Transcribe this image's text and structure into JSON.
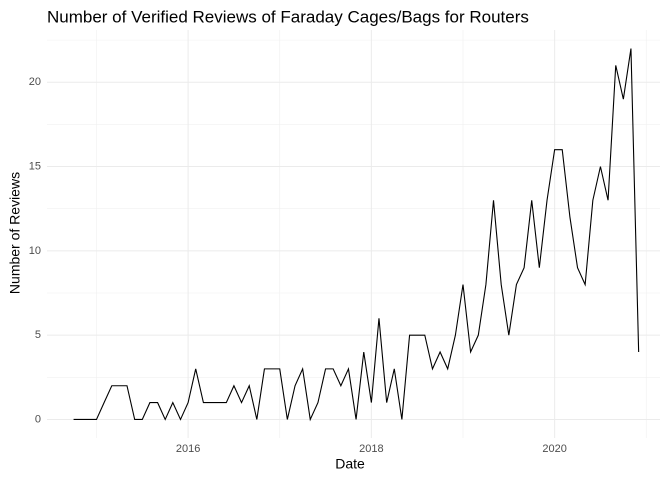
{
  "chart_data": {
    "type": "line",
    "title": "Number of Verified Reviews of Faraday Cages/Bags for Routers",
    "x_label": "Date",
    "y_label": "Number of Reviews",
    "x": [
      2014.75,
      2014.833,
      2014.917,
      2015,
      2015.083,
      2015.167,
      2015.25,
      2015.333,
      2015.417,
      2015.5,
      2015.583,
      2015.667,
      2015.75,
      2015.833,
      2015.917,
      2016,
      2016.083,
      2016.167,
      2016.25,
      2016.333,
      2016.417,
      2016.5,
      2016.583,
      2016.667,
      2016.75,
      2016.833,
      2016.917,
      2017,
      2017.083,
      2017.167,
      2017.25,
      2017.333,
      2017.417,
      2017.5,
      2017.583,
      2017.667,
      2017.75,
      2017.833,
      2017.917,
      2018,
      2018.083,
      2018.167,
      2018.25,
      2018.333,
      2018.417,
      2018.5,
      2018.583,
      2018.667,
      2018.75,
      2018.833,
      2018.917,
      2019,
      2019.083,
      2019.167,
      2019.25,
      2019.333,
      2019.417,
      2019.5,
      2019.583,
      2019.667,
      2019.75,
      2019.833,
      2019.917,
      2020,
      2020.083,
      2020.167,
      2020.25,
      2020.333,
      2020.417,
      2020.5,
      2020.583,
      2020.667,
      2020.75,
      2020.833,
      2020.917
    ],
    "series": [
      {
        "name": "Reviews",
        "color": "#000000",
        "values": [
          0,
          0,
          0,
          0,
          1,
          2,
          2,
          2,
          0,
          0,
          1,
          1,
          0,
          1,
          0,
          1,
          3,
          1,
          1,
          1,
          1,
          2,
          1,
          2,
          0,
          3,
          3,
          3,
          0,
          2,
          3,
          0,
          1,
          3,
          3,
          2,
          3,
          0,
          4,
          1,
          6,
          1,
          3,
          0,
          5,
          5,
          5,
          3,
          4,
          3,
          5,
          8,
          4,
          5,
          8,
          13,
          8,
          5,
          8,
          9,
          13,
          9,
          13,
          16,
          16,
          12,
          9,
          8,
          13,
          15,
          13,
          21,
          19,
          22,
          4
        ]
      }
    ],
    "xlim": [
      2014.46,
      2021.15
    ],
    "xticks": [
      2016,
      2018,
      2020
    ],
    "ylim": [
      -1.1,
      23.1
    ],
    "yticks": [
      0,
      5,
      10,
      15,
      20
    ],
    "grid": true
  }
}
